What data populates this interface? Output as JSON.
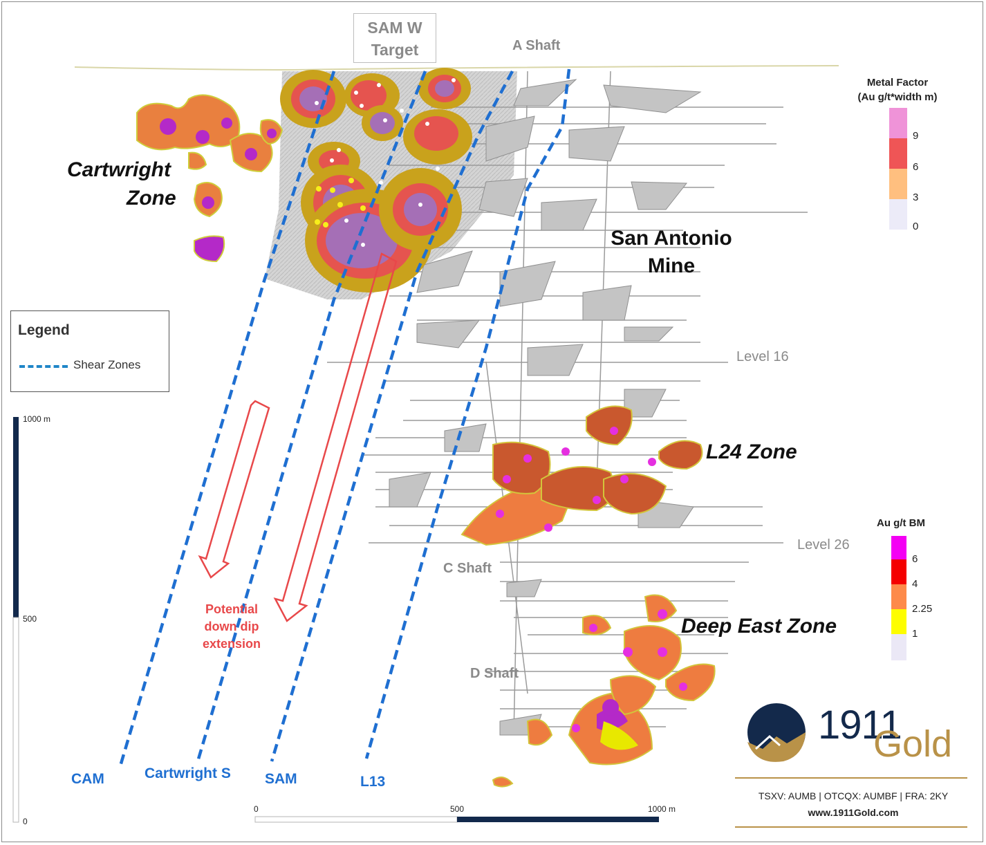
{
  "labels": {
    "sam_w_target": "SAM W\nTarget",
    "a_shaft": "A Shaft",
    "c_shaft": "C Shaft",
    "d_shaft": "D Shaft",
    "cartwright_zone_line1": "Cartwright",
    "cartwright_zone_line2": "Zone",
    "san_antonio_line1": "San Antonio",
    "san_antonio_line2": "Mine",
    "l24_zone": "L24 Zone",
    "deep_east_zone": "Deep East Zone",
    "level_16": "Level 16",
    "level_26": "Level 26",
    "potential_line1": "Potential",
    "potential_line2": "down dip",
    "potential_line3": "extension"
  },
  "shear_zones": {
    "cam": "CAM",
    "cartwright_s": "Cartwright S",
    "sam": "SAM",
    "l13": "L13"
  },
  "legend": {
    "title": "Legend",
    "item": "Shear Zones"
  },
  "metal_factor_bar": {
    "title_line1": "Metal Factor",
    "title_line2": "(Au g/t*width m)",
    "ticks": [
      "9",
      "6",
      "3",
      "0"
    ],
    "colors": [
      "#ef93d8",
      "#ef5556",
      "#ffbf7f",
      "#ecebf8"
    ]
  },
  "au_bar": {
    "title": "Au g/t BM",
    "ticks": [
      "6",
      "4",
      "2.25",
      "1"
    ],
    "colors": [
      "#f400f4",
      "#f40000",
      "#fd8a4a",
      "#fdfd00",
      "#ebe8f6"
    ]
  },
  "vertical_scale": {
    "top": "1000 m",
    "mid": "500",
    "bottom": "0"
  },
  "horizontal_scale": {
    "left": "0",
    "mid": "500",
    "right": "1000 m"
  },
  "branding": {
    "number": "1911",
    "word": "Gold",
    "tickers": "TSXV: AUMB | OTCQX: AUMBF | FRA: 2KY",
    "website": "www.1911Gold.com"
  },
  "colors": {
    "shear_blue": "#1f6fd1",
    "arrow_red": "#e8484a",
    "navy": "#13294b",
    "gold": "#b99248"
  }
}
